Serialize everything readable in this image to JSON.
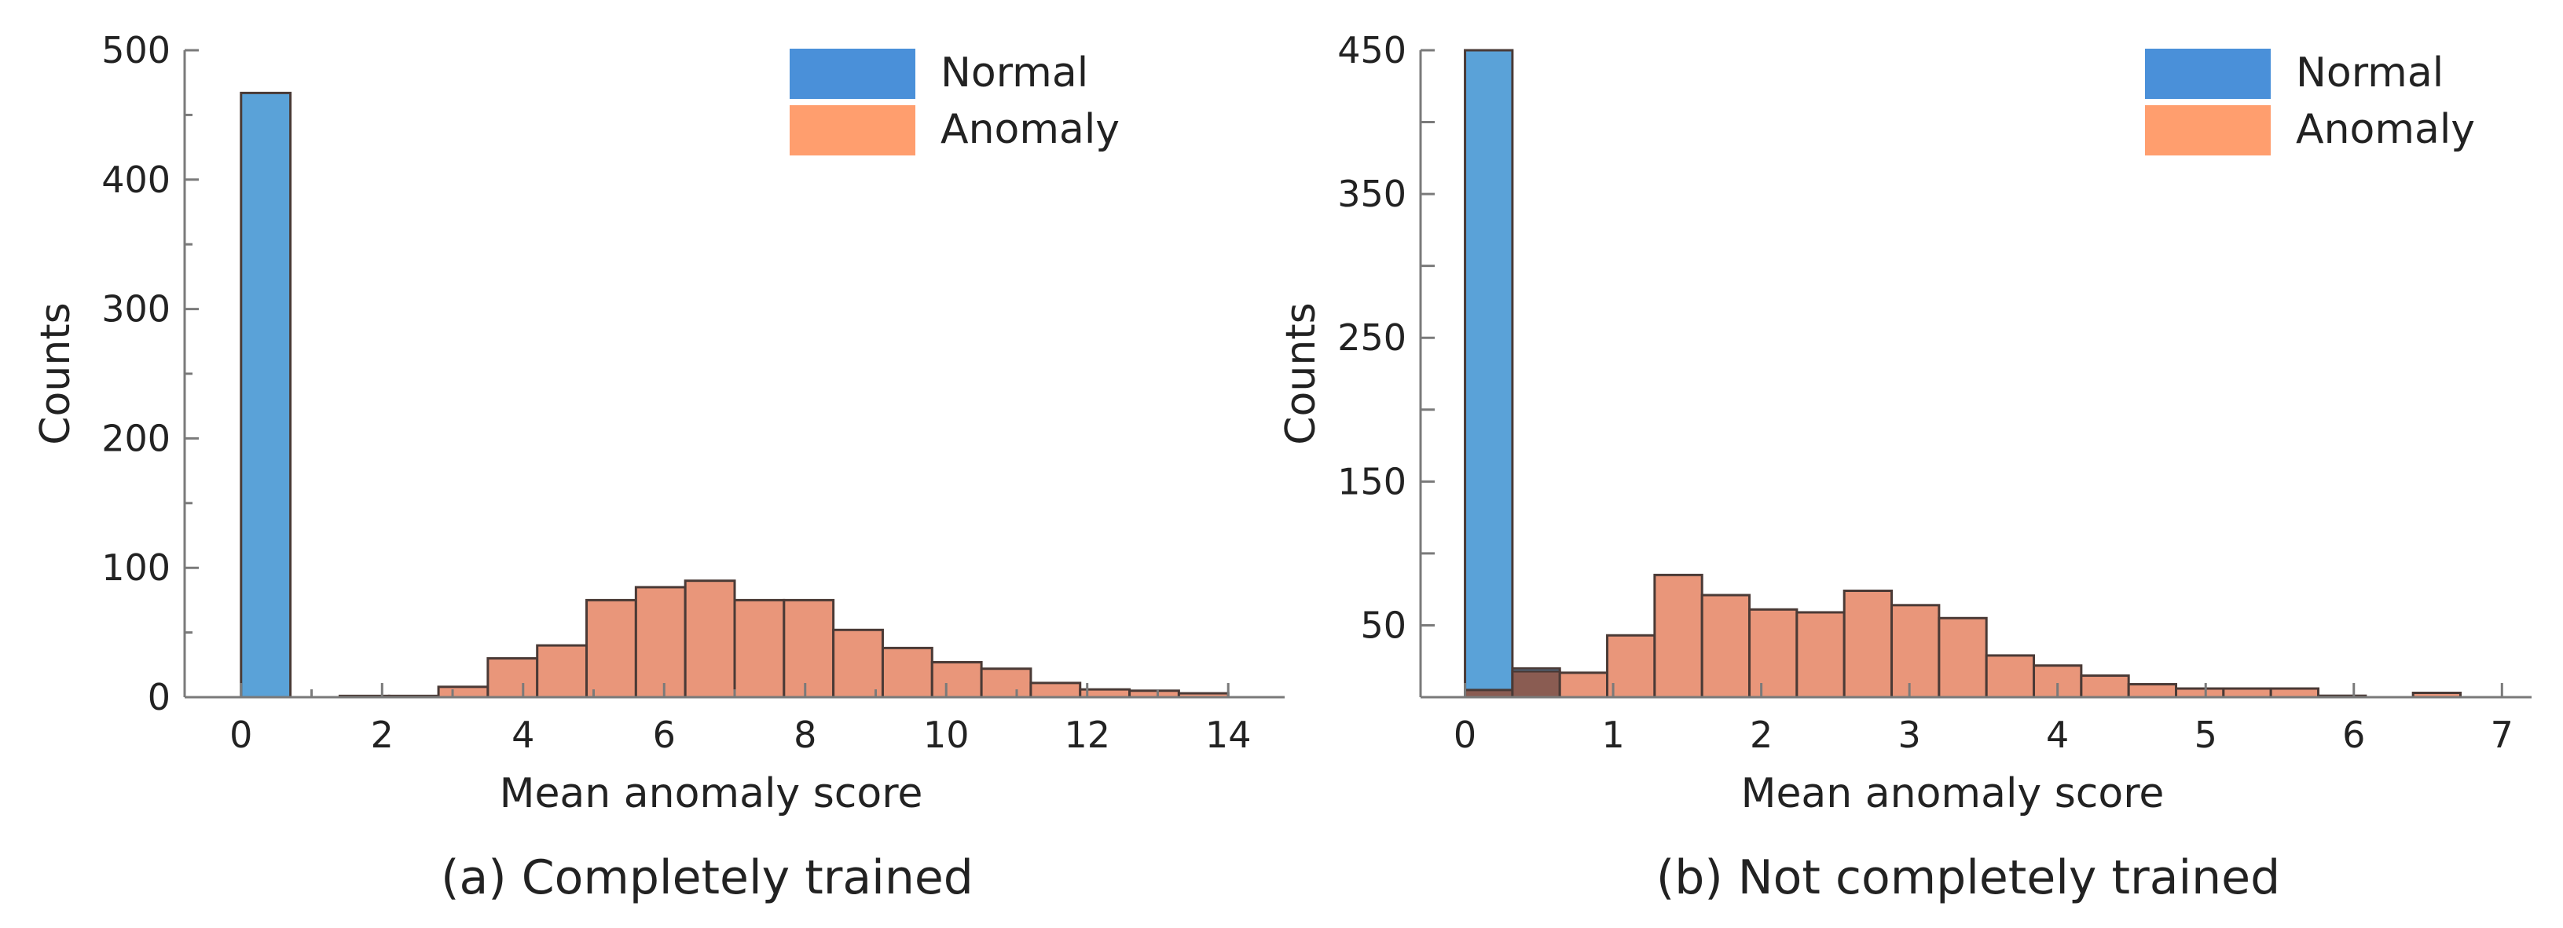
{
  "colors": {
    "normal_legend": "#4a90d9",
    "anomaly_legend": "#ff9e6e",
    "normal_bar": "#5aa2d8",
    "anomaly_bar": "#e9967a",
    "overlap_bar": "#8a5c52",
    "bar_edge": "#4a3a36",
    "axis": "#7a7a7a"
  },
  "chart_data": [
    {
      "type": "bar",
      "title": "",
      "caption": "(a) Completely trained",
      "xlabel": "Mean anomaly score",
      "ylabel": "Counts",
      "xlim": [
        -0.8,
        14.8
      ],
      "ylim": [
        0,
        500
      ],
      "xticks": [
        0,
        2,
        4,
        6,
        8,
        10,
        12,
        14
      ],
      "yticks": [
        0,
        100,
        200,
        300,
        400,
        500
      ],
      "yticks_labeled": [
        0,
        100,
        200,
        300,
        400,
        500
      ],
      "grid": false,
      "legend": {
        "placement": "top-right",
        "entries": [
          "Normal",
          "Anomaly"
        ]
      },
      "series": [
        {
          "name": "Normal",
          "bin_width": 0.7,
          "bin_starts": [
            0.0
          ],
          "values": [
            467
          ]
        },
        {
          "name": "Anomaly",
          "bin_width": 0.7,
          "bin_starts": [
            1.4,
            2.1,
            2.8,
            3.5,
            4.2,
            4.9,
            5.6,
            6.3,
            7.0,
            7.7,
            8.4,
            9.1,
            9.8,
            10.5,
            11.2,
            11.9,
            12.6,
            13.3
          ],
          "values": [
            1,
            1,
            8,
            30,
            40,
            75,
            85,
            90,
            75,
            75,
            52,
            38,
            27,
            22,
            11,
            6,
            5,
            3
          ]
        }
      ]
    },
    {
      "type": "bar",
      "title": "",
      "caption": "(b) Not completely trained",
      "xlabel": "Mean anomaly score",
      "ylabel": "Counts",
      "xlim": [
        -0.3,
        7.2
      ],
      "ylim": [
        0,
        450
      ],
      "xticks": [
        0,
        1,
        2,
        3,
        4,
        5,
        6,
        7
      ],
      "yticks": [
        0,
        50,
        100,
        150,
        200,
        250,
        300,
        350,
        400,
        450
      ],
      "yticks_labeled": [
        50,
        150,
        250,
        350,
        450
      ],
      "grid": false,
      "legend": {
        "placement": "top-right",
        "entries": [
          "Normal",
          "Anomaly"
        ]
      },
      "series": [
        {
          "name": "Normal",
          "bin_width": 0.32,
          "bin_starts": [
            0.0,
            0.32
          ],
          "values": [
            450,
            20
          ]
        },
        {
          "name": "Anomaly",
          "bin_width": 0.32,
          "bin_starts": [
            0.0,
            0.32,
            0.64,
            0.96,
            1.28,
            1.6,
            1.92,
            2.24,
            2.56,
            2.88,
            3.2,
            3.52,
            3.84,
            4.16,
            4.48,
            4.8,
            5.12,
            5.44,
            5.76,
            6.08,
            6.4
          ],
          "values": [
            5,
            18,
            17,
            43,
            85,
            71,
            61,
            59,
            74,
            64,
            55,
            29,
            22,
            15,
            9,
            6,
            6,
            6,
            1,
            0,
            3
          ]
        }
      ]
    }
  ]
}
